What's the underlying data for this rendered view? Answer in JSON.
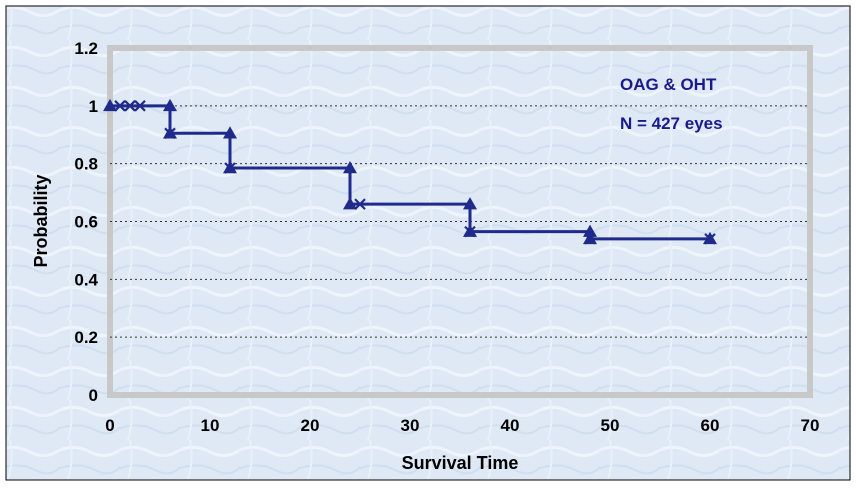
{
  "chart_data": {
    "type": "line",
    "subtype": "kaplan-meier step plot",
    "title": "",
    "xlabel": "Survival Time",
    "ylabel": "Probability",
    "xlim": [
      0,
      70
    ],
    "ylim": [
      0,
      1.2
    ],
    "xticks": [
      0,
      10,
      20,
      30,
      40,
      50,
      60,
      70
    ],
    "xtick_labels": [
      "0",
      "10",
      "20",
      "30",
      "40",
      "50",
      "60",
      "70"
    ],
    "yticks": [
      0,
      0.2,
      0.4,
      0.6,
      0.8,
      1,
      1.2
    ],
    "ytick_labels": [
      "0",
      "0.2",
      "0.4",
      "0.6",
      "0.8",
      "1",
      "1.2"
    ],
    "grid": "horizontal dotted",
    "annotations": [
      "OAG & OHT",
      "N = 427 eyes"
    ],
    "series": [
      {
        "name": "",
        "marker": "triangle",
        "step_points": [
          {
            "x": 0,
            "y": 1.0
          },
          {
            "x": 6,
            "y": 1.0
          },
          {
            "x": 6,
            "y": 0.905
          },
          {
            "x": 12,
            "y": 0.905
          },
          {
            "x": 12,
            "y": 0.785
          },
          {
            "x": 24,
            "y": 0.785
          },
          {
            "x": 24,
            "y": 0.66
          },
          {
            "x": 36,
            "y": 0.66
          },
          {
            "x": 36,
            "y": 0.565
          },
          {
            "x": 48,
            "y": 0.565
          },
          {
            "x": 48,
            "y": 0.54
          },
          {
            "x": 60,
            "y": 0.54
          }
        ],
        "censored": [
          {
            "x": 1,
            "y": 1.0
          },
          {
            "x": 2,
            "y": 1.0
          },
          {
            "x": 3,
            "y": 1.0
          },
          {
            "x": 6,
            "y": 0.905
          },
          {
            "x": 12,
            "y": 0.785
          },
          {
            "x": 25,
            "y": 0.66
          },
          {
            "x": 36,
            "y": 0.565
          },
          {
            "x": 48,
            "y": 0.54
          },
          {
            "x": 60,
            "y": 0.54
          }
        ]
      }
    ],
    "colors": {
      "background": "#dde8f4",
      "plot_area": "#c8c8c8",
      "series": "#1f2a8a",
      "annotation": "#1a1a8c"
    }
  }
}
